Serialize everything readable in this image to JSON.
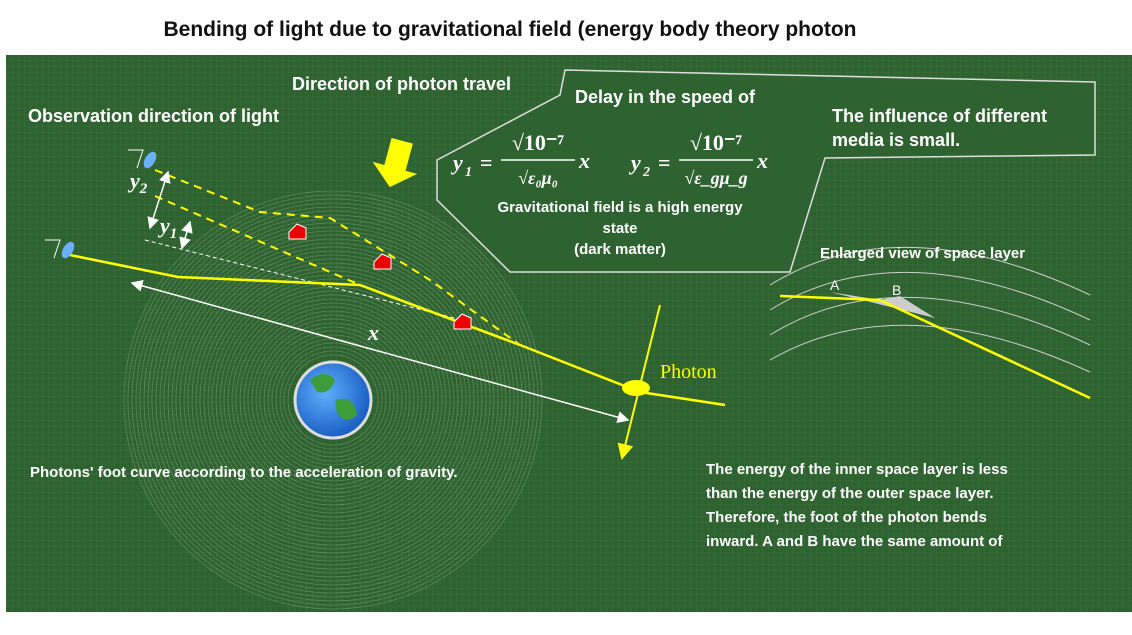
{
  "title": "Bending of light due to gravitational field (energy body theory photon",
  "labels": {
    "travel": "Direction of photon travel",
    "observation": "Observation direction of light",
    "delay": "Delay in the speed of",
    "photon": "Photon",
    "x": "x",
    "y1": "y",
    "y1_sub": "1",
    "y2": "y",
    "y2_sub": "2",
    "enlarged": "Enlarged view of space layer",
    "a": "A",
    "b": "B",
    "foot_curve": "Photons' foot curve according to the acceleration of gravity."
  },
  "formulas": [
    {
      "lhs": "y",
      "sub": "1",
      "eq": "=",
      "num": "√10⁻⁷",
      "den": "√ε₀μ₀",
      "var": "x"
    },
    {
      "lhs": "y",
      "sub": "2",
      "eq": "=",
      "num": "√10⁻⁷",
      "den": "√ε_gμ_g",
      "var": "x"
    }
  ],
  "field_note": [
    "Gravitational field is a high energy",
    "state",
    "(dark matter)"
  ],
  "media_note": [
    "The influence of different",
    "media is small."
  ],
  "explanation": [
    "The energy of the inner space layer is less",
    "than the energy of the outer space layer.",
    "Therefore, the foot of the photon bends",
    "inward. A and B have the same amount of"
  ]
}
